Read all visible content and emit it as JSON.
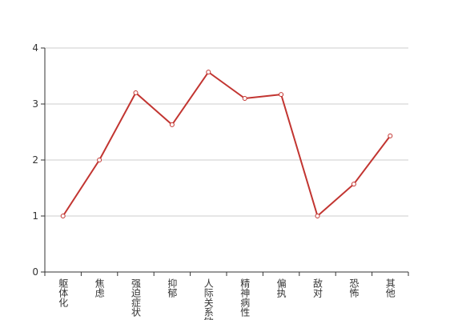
{
  "chart_data": {
    "type": "line",
    "categories": [
      "躯体化",
      "焦虑",
      "强迫症状",
      "抑郁",
      "人际关系敏感",
      "精神病性",
      "偏执",
      "敌对",
      "恐怖",
      "其他"
    ],
    "series": [
      {
        "color": "#c23531",
        "values": [
          1,
          2,
          3.2,
          2.63,
          3.57,
          3.1,
          3.17,
          1,
          1.57,
          2.43
        ]
      }
    ],
    "ylim": [
      0,
      4
    ],
    "yticks": [
      0,
      1,
      2,
      3,
      4
    ],
    "grid": true
  }
}
